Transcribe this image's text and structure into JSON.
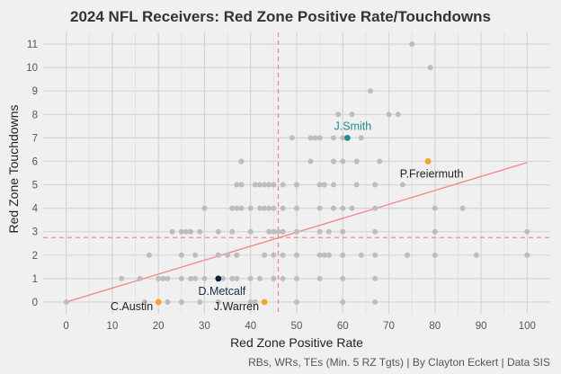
{
  "chart_data": {
    "type": "scatter",
    "title": "2024 NFL Receivers: Red Zone Positive Rate/Touchdowns",
    "xlabel": "Red Zone Positive Rate",
    "ylabel": "Red Zone Touchdowns",
    "caption": "RBs, WRs, TEs (Min. 5 RZ Tgts) | By Clayton Eckert | Data SIS",
    "xlim": [
      -5,
      105
    ],
    "ylim": [
      -0.5,
      11.5
    ],
    "x_ticks": [
      0,
      10,
      20,
      30,
      40,
      50,
      60,
      70,
      80,
      90,
      100
    ],
    "y_ticks": [
      0,
      1,
      2,
      3,
      4,
      5,
      6,
      7,
      8,
      9,
      10,
      11
    ],
    "grid": true,
    "reference_lines": {
      "x_mean": 46,
      "y_mean": 2.75,
      "color": "#f08a8a"
    },
    "trend_line": {
      "from": [
        0,
        0
      ],
      "to": [
        100,
        5.95
      ],
      "color": "#f08a8a"
    },
    "colors": {
      "default_point": "#bdbdbd",
      "highlight_gold": "#f5a623",
      "highlight_teal": "#1e8c92",
      "highlight_navy": "#0d1f3c"
    },
    "points": [
      [
        75,
        11
      ],
      [
        79,
        10
      ],
      [
        66,
        9
      ],
      [
        62,
        8
      ],
      [
        59,
        8
      ],
      [
        70,
        8
      ],
      [
        72,
        8
      ],
      [
        49,
        7
      ],
      [
        53,
        7
      ],
      [
        54,
        7
      ],
      [
        55,
        7
      ],
      [
        58,
        7
      ],
      [
        60,
        7
      ],
      [
        64,
        7
      ],
      [
        38,
        6
      ],
      [
        53,
        6
      ],
      [
        58,
        6
      ],
      [
        60,
        6
      ],
      [
        63,
        6
      ],
      [
        68,
        6
      ],
      [
        37,
        5
      ],
      [
        38,
        5
      ],
      [
        41,
        5
      ],
      [
        42,
        5
      ],
      [
        43,
        5
      ],
      [
        44,
        5
      ],
      [
        45,
        5
      ],
      [
        47,
        5
      ],
      [
        50,
        5
      ],
      [
        55,
        5
      ],
      [
        56,
        5
      ],
      [
        58,
        5
      ],
      [
        63,
        5
      ],
      [
        67,
        5
      ],
      [
        73,
        5
      ],
      [
        30,
        4
      ],
      [
        36,
        4
      ],
      [
        37,
        4
      ],
      [
        38,
        4
      ],
      [
        40,
        4
      ],
      [
        42,
        4
      ],
      [
        43,
        4
      ],
      [
        44,
        4
      ],
      [
        45,
        4
      ],
      [
        47,
        4
      ],
      [
        50,
        4
      ],
      [
        55,
        4
      ],
      [
        58,
        4
      ],
      [
        60,
        4
      ],
      [
        62,
        4
      ],
      [
        67,
        4
      ],
      [
        80,
        4
      ],
      [
        86,
        4
      ],
      [
        23,
        3
      ],
      [
        25,
        3
      ],
      [
        26,
        3
      ],
      [
        27,
        3
      ],
      [
        29,
        3
      ],
      [
        33,
        3
      ],
      [
        36,
        3
      ],
      [
        40,
        3
      ],
      [
        44,
        3
      ],
      [
        45,
        3
      ],
      [
        46,
        3
      ],
      [
        47,
        3
      ],
      [
        50,
        3
      ],
      [
        55,
        3
      ],
      [
        57,
        3
      ],
      [
        60,
        3
      ],
      [
        67,
        3
      ],
      [
        80,
        3
      ],
      [
        100,
        3
      ],
      [
        18,
        2
      ],
      [
        25,
        2
      ],
      [
        28,
        2
      ],
      [
        33,
        2
      ],
      [
        35,
        2
      ],
      [
        37,
        2
      ],
      [
        43,
        2
      ],
      [
        45,
        2
      ],
      [
        47,
        2
      ],
      [
        50,
        2
      ],
      [
        55,
        2
      ],
      [
        56,
        2
      ],
      [
        57,
        2
      ],
      [
        60,
        2
      ],
      [
        64,
        2
      ],
      [
        67,
        2
      ],
      [
        74,
        2
      ],
      [
        80,
        2
      ],
      [
        89,
        2
      ],
      [
        100,
        2
      ],
      [
        12,
        1
      ],
      [
        16,
        1
      ],
      [
        20,
        1
      ],
      [
        21,
        1
      ],
      [
        22,
        1
      ],
      [
        25,
        1
      ],
      [
        27,
        1
      ],
      [
        28,
        1
      ],
      [
        30,
        1
      ],
      [
        34,
        1
      ],
      [
        36,
        1
      ],
      [
        37,
        1
      ],
      [
        40,
        1
      ],
      [
        42,
        1
      ],
      [
        45,
        1
      ],
      [
        47,
        1
      ],
      [
        50,
        1
      ],
      [
        55,
        1
      ],
      [
        60,
        1
      ],
      [
        67,
        1
      ],
      [
        0,
        0
      ],
      [
        17,
        0
      ],
      [
        20,
        0
      ],
      [
        22,
        0
      ],
      [
        25,
        0
      ],
      [
        29,
        0
      ],
      [
        33,
        0
      ],
      [
        40,
        0
      ],
      [
        41,
        0
      ],
      [
        50,
        0
      ],
      [
        60,
        0
      ],
      [
        67,
        0
      ]
    ],
    "highlights": [
      {
        "label": "J.Smith",
        "x": 61,
        "y": 7,
        "color": "#1e8c92",
        "label_color": "#1e8c92",
        "label_pos": "above"
      },
      {
        "label": "P.Freiermuth",
        "x": 78.5,
        "y": 6,
        "color": "#f5a623",
        "label_color": "#222222",
        "label_pos": "below"
      },
      {
        "label": "D.Metcalf",
        "x": 33,
        "y": 1,
        "color": "#0d1f3c",
        "label_color": "#1a2a4a",
        "label_pos": "below"
      },
      {
        "label": "C.Austin",
        "x": 20,
        "y": 0,
        "color": "#f5a623",
        "label_color": "#222222",
        "label_pos": "left"
      },
      {
        "label": "J.Warren",
        "x": 43,
        "y": 0,
        "color": "#f5a623",
        "label_color": "#222222",
        "label_pos": "left"
      }
    ]
  }
}
